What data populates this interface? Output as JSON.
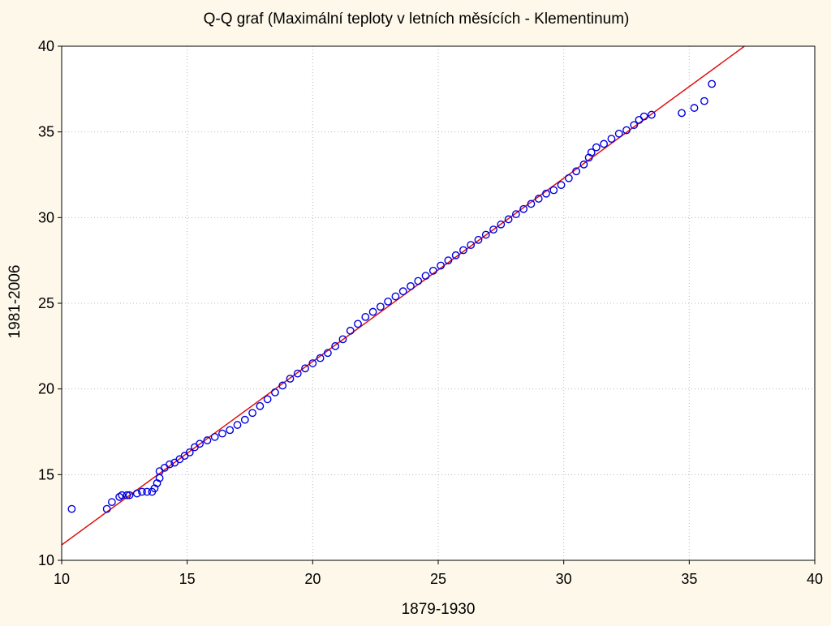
{
  "chart_data": {
    "type": "scatter",
    "title": "Q-Q graf (Maximální teploty v letních měsících - Klementinum)",
    "xlabel": "1879-1930",
    "ylabel": "1981-2006",
    "xlim": [
      10,
      40
    ],
    "ylim": [
      10,
      40
    ],
    "x_ticks": [
      "10",
      "15",
      "20",
      "25",
      "30",
      "35",
      "40"
    ],
    "y_ticks": [
      "10",
      "15",
      "20",
      "25",
      "30",
      "35",
      "40"
    ],
    "grid": true,
    "colors": {
      "points": "#0000e0",
      "reference_line": "#e01010",
      "background": "#fdf8ea",
      "plot_bg": "#ffffff"
    },
    "reference_line": {
      "x": [
        10,
        37.2
      ],
      "y": [
        10.9,
        40
      ]
    },
    "points": [
      [
        10.4,
        13.0
      ],
      [
        11.8,
        13.0
      ],
      [
        12.0,
        13.4
      ],
      [
        12.3,
        13.7
      ],
      [
        12.4,
        13.8
      ],
      [
        12.6,
        13.8
      ],
      [
        12.7,
        13.8
      ],
      [
        13.0,
        13.9
      ],
      [
        13.2,
        14.0
      ],
      [
        13.4,
        14.0
      ],
      [
        13.6,
        14.0
      ],
      [
        13.7,
        14.2
      ],
      [
        13.8,
        14.5
      ],
      [
        13.9,
        14.8
      ],
      [
        13.9,
        15.2
      ],
      [
        14.1,
        15.4
      ],
      [
        14.3,
        15.6
      ],
      [
        14.5,
        15.7
      ],
      [
        14.7,
        15.9
      ],
      [
        14.9,
        16.1
      ],
      [
        15.1,
        16.3
      ],
      [
        15.3,
        16.6
      ],
      [
        15.5,
        16.8
      ],
      [
        15.8,
        17.0
      ],
      [
        16.1,
        17.2
      ],
      [
        16.4,
        17.4
      ],
      [
        16.7,
        17.6
      ],
      [
        17.0,
        17.9
      ],
      [
        17.3,
        18.2
      ],
      [
        17.6,
        18.6
      ],
      [
        17.9,
        19.0
      ],
      [
        18.2,
        19.4
      ],
      [
        18.5,
        19.8
      ],
      [
        18.8,
        20.2
      ],
      [
        19.1,
        20.6
      ],
      [
        19.4,
        20.9
      ],
      [
        19.7,
        21.2
      ],
      [
        20.0,
        21.5
      ],
      [
        20.3,
        21.8
      ],
      [
        20.6,
        22.1
      ],
      [
        20.9,
        22.5
      ],
      [
        21.2,
        22.9
      ],
      [
        21.5,
        23.4
      ],
      [
        21.8,
        23.8
      ],
      [
        22.1,
        24.2
      ],
      [
        22.4,
        24.5
      ],
      [
        22.7,
        24.8
      ],
      [
        23.0,
        25.1
      ],
      [
        23.3,
        25.4
      ],
      [
        23.6,
        25.7
      ],
      [
        23.9,
        26.0
      ],
      [
        24.2,
        26.3
      ],
      [
        24.5,
        26.6
      ],
      [
        24.8,
        26.9
      ],
      [
        25.1,
        27.2
      ],
      [
        25.4,
        27.5
      ],
      [
        25.7,
        27.8
      ],
      [
        26.0,
        28.1
      ],
      [
        26.3,
        28.4
      ],
      [
        26.6,
        28.7
      ],
      [
        26.9,
        29.0
      ],
      [
        27.2,
        29.3
      ],
      [
        27.5,
        29.6
      ],
      [
        27.8,
        29.9
      ],
      [
        28.1,
        30.2
      ],
      [
        28.4,
        30.5
      ],
      [
        28.7,
        30.8
      ],
      [
        29.0,
        31.1
      ],
      [
        29.3,
        31.4
      ],
      [
        29.6,
        31.6
      ],
      [
        29.9,
        31.9
      ],
      [
        30.2,
        32.3
      ],
      [
        30.5,
        32.7
      ],
      [
        30.8,
        33.1
      ],
      [
        31.0,
        33.5
      ],
      [
        31.1,
        33.8
      ],
      [
        31.3,
        34.1
      ],
      [
        31.6,
        34.3
      ],
      [
        31.9,
        34.6
      ],
      [
        32.2,
        34.9
      ],
      [
        32.5,
        35.1
      ],
      [
        32.8,
        35.4
      ],
      [
        33.0,
        35.7
      ],
      [
        33.2,
        35.9
      ],
      [
        33.5,
        36.0
      ],
      [
        34.7,
        36.1
      ],
      [
        35.2,
        36.4
      ],
      [
        35.6,
        36.8
      ],
      [
        35.9,
        37.8
      ]
    ]
  }
}
